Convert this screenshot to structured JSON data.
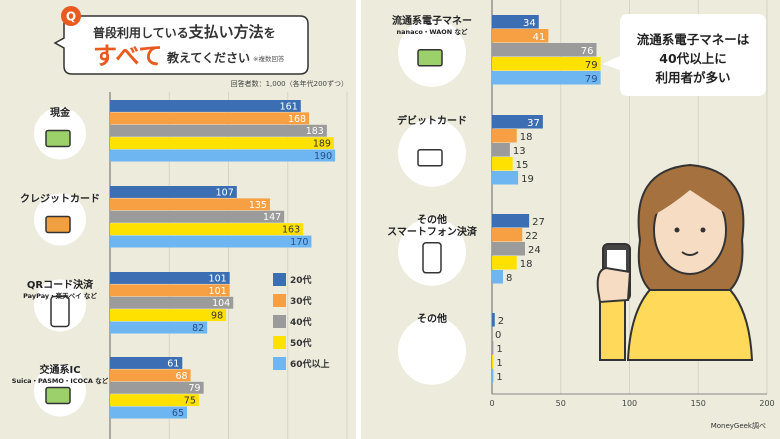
{
  "question": {
    "badge": "Q",
    "line1_prefix": "普段利用している",
    "line1_emph": "支払い方法",
    "line1_suffix": "を",
    "line2_emph": "すべて",
    "line2_suffix": "教えてください",
    "note": "※複数回答"
  },
  "respondents": "回答者数：1,000（各年代200ずつ）",
  "callout": [
    "流通系電子マネーは",
    "40代以上に",
    "利用者が多い"
  ],
  "source": "MoneyGeek調べ",
  "colors": {
    "20代": "#3b6eb2",
    "30代": "#f7a043",
    "40代": "#9b9b9b",
    "50代": "#ffe100",
    "60代以上": "#6db6f2",
    "background": "#ecebdc"
  },
  "chart_data": [
    {
      "type": "bar",
      "orientation": "horizontal",
      "xlim": [
        0,
        200
      ],
      "grid": true,
      "legend_placement": "right",
      "series_names": [
        "20代",
        "30代",
        "40代",
        "50代",
        "60代以上"
      ],
      "categories": [
        {
          "label": "現金",
          "sub": "",
          "icon": "cash-icon",
          "values": [
            161,
            168,
            183,
            189,
            190
          ]
        },
        {
          "label": "クレジットカード",
          "sub": "",
          "icon": "credit-card-icon",
          "values": [
            107,
            135,
            147,
            163,
            170
          ]
        },
        {
          "label": "QRコード決済",
          "sub": "PayPay・楽天ペイ など",
          "icon": "qr-phone-icon",
          "values": [
            101,
            101,
            104,
            98,
            82
          ]
        },
        {
          "label": "交通系IC",
          "sub": "Suica・PASMO・ICOCA など",
          "icon": "ic-card-icon",
          "values": [
            61,
            68,
            79,
            75,
            65
          ]
        }
      ]
    },
    {
      "type": "bar",
      "orientation": "horizontal",
      "xlim": [
        0,
        200
      ],
      "xticks": [
        0,
        50,
        100,
        150,
        200
      ],
      "grid": true,
      "series_names": [
        "20代",
        "30代",
        "40代",
        "50代",
        "60代以上"
      ],
      "categories": [
        {
          "label": "流通系電子マネー",
          "sub": "nanaco・WAON など",
          "icon": "e-money-card-icon",
          "values": [
            34,
            41,
            76,
            79,
            79
          ]
        },
        {
          "label": "デビットカード",
          "sub": "",
          "icon": "debit-card-icon",
          "values": [
            37,
            18,
            13,
            15,
            19
          ]
        },
        {
          "label": "その他\nスマートフォン決済",
          "sub": "",
          "icon": "smartphone-icon",
          "values": [
            27,
            22,
            24,
            18,
            8
          ]
        },
        {
          "label": "その他",
          "sub": "",
          "icon": "",
          "values": [
            2,
            0,
            1,
            1,
            1
          ]
        }
      ]
    }
  ]
}
